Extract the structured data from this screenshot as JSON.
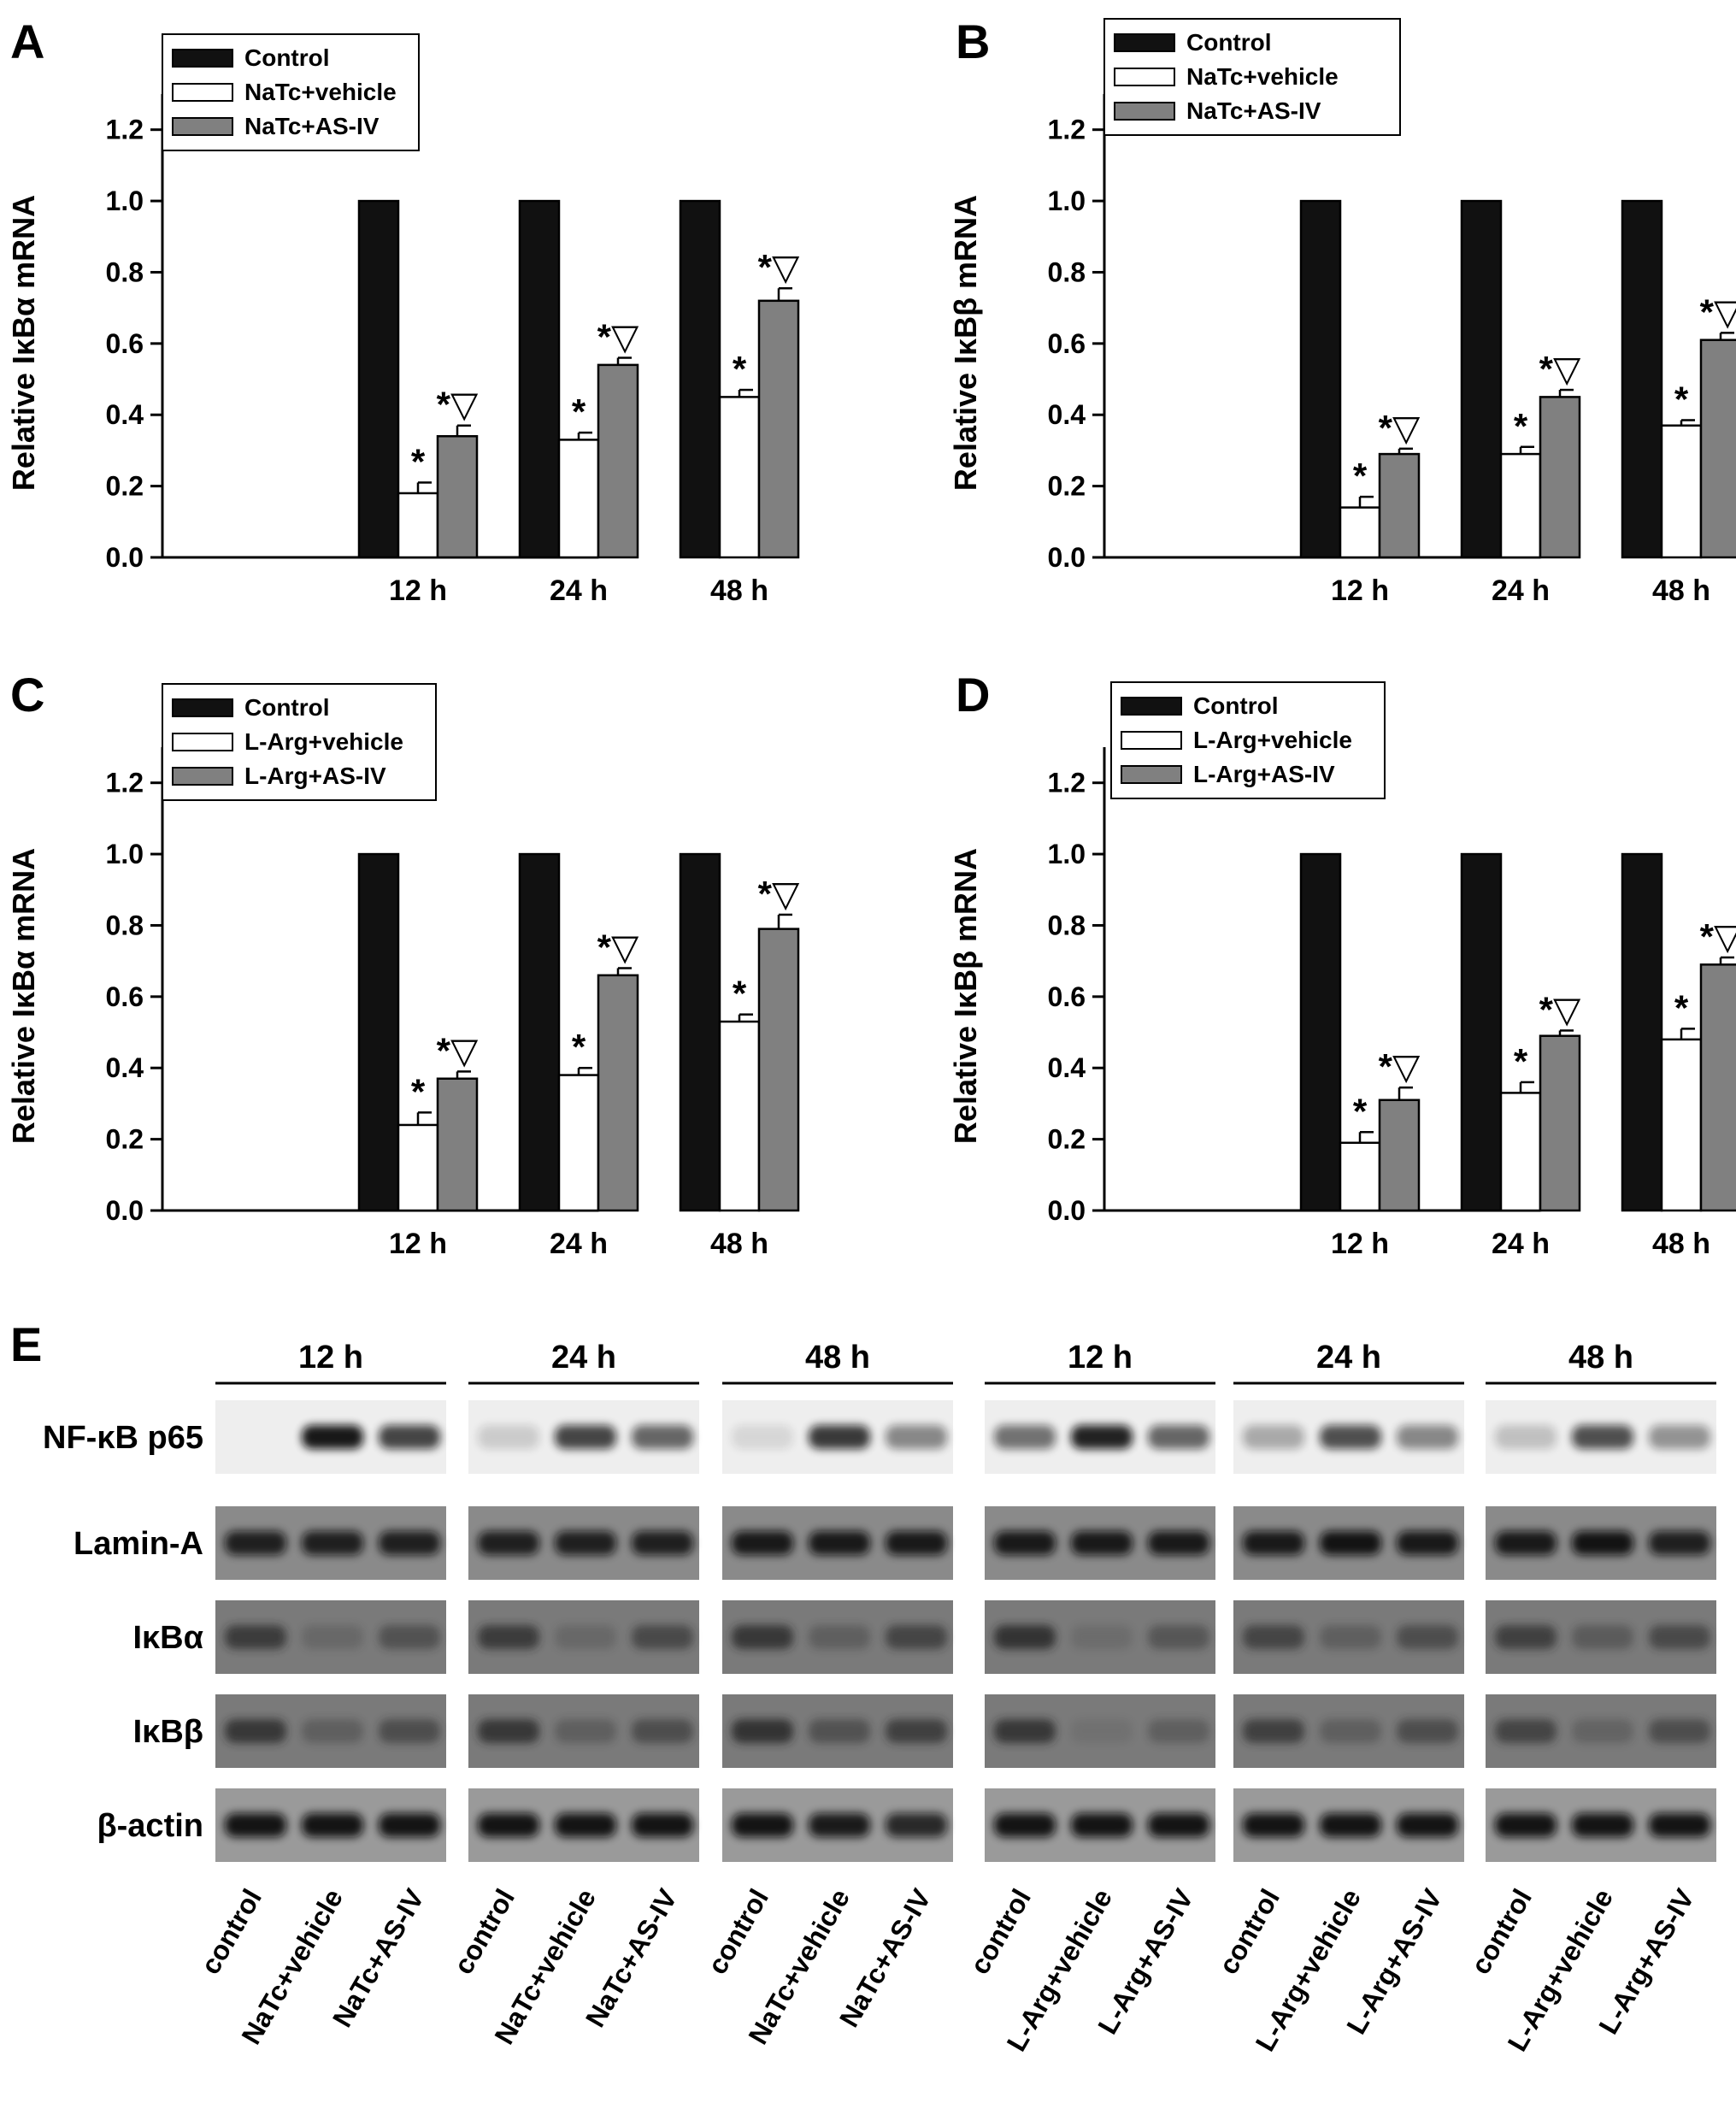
{
  "chart_data": [
    {
      "panel": "A",
      "type": "bar",
      "ylabel": "Relative IκBα mRNA",
      "xlabel": "",
      "categories": [
        "12 h",
        "24 h",
        "48 h"
      ],
      "ylim": [
        0,
        1.3
      ],
      "yticks": [
        "0.0",
        "0.2",
        "0.4",
        "0.6",
        "0.8",
        "1.0",
        "1.2"
      ],
      "legend_position": "top-left",
      "series": [
        {
          "name": "Control",
          "color": "#111111",
          "values": [
            1.0,
            1.0,
            1.0
          ],
          "errors": [
            0,
            0,
            0
          ]
        },
        {
          "name": "NaTc+vehicle",
          "color": "#ffffff",
          "values": [
            0.18,
            0.33,
            0.45
          ],
          "errors": [
            0.03,
            0.02,
            0.02
          ]
        },
        {
          "name": "NaTc+AS-IV",
          "color": "#808080",
          "values": [
            0.34,
            0.54,
            0.72
          ],
          "errors": [
            0.03,
            0.02,
            0.035
          ]
        }
      ],
      "annotations": [
        [
          "",
          "*",
          "*▽"
        ],
        [
          "",
          "*",
          "*▽"
        ],
        [
          "",
          "*",
          "*▽"
        ]
      ]
    },
    {
      "panel": "B",
      "type": "bar",
      "ylabel": "Relative IκBβ mRNA",
      "xlabel": "",
      "categories": [
        "12 h",
        "24 h",
        "48 h"
      ],
      "ylim": [
        0,
        1.3
      ],
      "yticks": [
        "0.0",
        "0.2",
        "0.4",
        "0.6",
        "0.8",
        "1.0",
        "1.2"
      ],
      "legend_position": "top-left",
      "series": [
        {
          "name": "Control",
          "color": "#111111",
          "values": [
            1.0,
            1.0,
            1.0
          ],
          "errors": [
            0,
            0,
            0
          ]
        },
        {
          "name": "NaTc+vehicle",
          "color": "#ffffff",
          "values": [
            0.14,
            0.29,
            0.37
          ],
          "errors": [
            0.03,
            0.02,
            0.015
          ]
        },
        {
          "name": "NaTc+AS-IV",
          "color": "#808080",
          "values": [
            0.29,
            0.45,
            0.61
          ],
          "errors": [
            0.015,
            0.02,
            0.02
          ]
        }
      ],
      "annotations": [
        [
          "",
          "*",
          "*▽"
        ],
        [
          "",
          "*",
          "*▽"
        ],
        [
          "",
          "*",
          "*▽"
        ]
      ]
    },
    {
      "panel": "C",
      "type": "bar",
      "ylabel": "Relative IκBα mRNA",
      "xlabel": "",
      "categories": [
        "12 h",
        "24 h",
        "48 h"
      ],
      "ylim": [
        0,
        1.3
      ],
      "yticks": [
        "0.0",
        "0.2",
        "0.4",
        "0.6",
        "0.8",
        "1.0",
        "1.2"
      ],
      "legend_position": "top-left",
      "series": [
        {
          "name": "Control",
          "color": "#111111",
          "values": [
            1.0,
            1.0,
            1.0
          ],
          "errors": [
            0,
            0,
            0
          ]
        },
        {
          "name": "L-Arg+vehicle",
          "color": "#ffffff",
          "values": [
            0.24,
            0.38,
            0.53
          ],
          "errors": [
            0.035,
            0.02,
            0.02
          ]
        },
        {
          "name": "L-Arg+AS-IV",
          "color": "#808080",
          "values": [
            0.37,
            0.66,
            0.79
          ],
          "errors": [
            0.02,
            0.02,
            0.04
          ]
        }
      ],
      "annotations": [
        [
          "",
          "*",
          "*▽"
        ],
        [
          "",
          "*",
          "*▽"
        ],
        [
          "",
          "*",
          "*▽"
        ]
      ]
    },
    {
      "panel": "D",
      "type": "bar",
      "ylabel": "Relative IκBβ mRNA",
      "xlabel": "",
      "categories": [
        "12 h",
        "24 h",
        "48 h"
      ],
      "ylim": [
        0,
        1.3
      ],
      "yticks": [
        "0.0",
        "0.2",
        "0.4",
        "0.6",
        "0.8",
        "1.0",
        "1.2"
      ],
      "legend_position": "top-left",
      "series": [
        {
          "name": "Control",
          "color": "#111111",
          "values": [
            1.0,
            1.0,
            1.0
          ],
          "errors": [
            0,
            0,
            0
          ]
        },
        {
          "name": "L-Arg+vehicle",
          "color": "#ffffff",
          "values": [
            0.19,
            0.33,
            0.48
          ],
          "errors": [
            0.03,
            0.03,
            0.03
          ]
        },
        {
          "name": "L-Arg+AS-IV",
          "color": "#808080",
          "values": [
            0.31,
            0.49,
            0.69
          ],
          "errors": [
            0.035,
            0.015,
            0.02
          ]
        }
      ],
      "annotations": [
        [
          "",
          "*",
          "*▽"
        ],
        [
          "",
          "*",
          "*▽"
        ],
        [
          "",
          "*",
          "*▽"
        ]
      ]
    }
  ],
  "blot": {
    "panel": "E",
    "timepoints": [
      "12 h",
      "24 h",
      "48 h",
      "12 h",
      "24 h",
      "48 h"
    ],
    "rows": [
      {
        "label": "NF-κB p65",
        "bg": "#eeeeee",
        "band_dark": "#111111",
        "intensities": [
          [
            0.0,
            0.95,
            0.75
          ],
          [
            0.15,
            0.75,
            0.6
          ],
          [
            0.1,
            0.8,
            0.45
          ],
          [
            0.55,
            0.9,
            0.6
          ],
          [
            0.3,
            0.7,
            0.45
          ],
          [
            0.2,
            0.7,
            0.4
          ]
        ]
      },
      {
        "label": "Lamin-A",
        "bg": "#8a8a8a",
        "band_dark": "#111111",
        "intensities": [
          [
            0.85,
            0.85,
            0.85
          ],
          [
            0.85,
            0.85,
            0.85
          ],
          [
            0.9,
            0.9,
            0.9
          ],
          [
            0.9,
            0.9,
            0.9
          ],
          [
            0.9,
            0.95,
            0.9
          ],
          [
            0.9,
            0.95,
            0.85
          ]
        ]
      },
      {
        "label": "IκBα",
        "bg": "#7a7a7a",
        "band_dark": "#222222",
        "intensities": [
          [
            0.7,
            0.2,
            0.45
          ],
          [
            0.7,
            0.2,
            0.55
          ],
          [
            0.75,
            0.3,
            0.6
          ],
          [
            0.8,
            0.15,
            0.4
          ],
          [
            0.6,
            0.3,
            0.5
          ],
          [
            0.65,
            0.35,
            0.55
          ]
        ]
      },
      {
        "label": "IκBβ",
        "bg": "#7a7a7a",
        "band_dark": "#222222",
        "intensities": [
          [
            0.75,
            0.3,
            0.5
          ],
          [
            0.75,
            0.3,
            0.5
          ],
          [
            0.8,
            0.45,
            0.65
          ],
          [
            0.75,
            0.1,
            0.3
          ],
          [
            0.65,
            0.3,
            0.5
          ],
          [
            0.6,
            0.25,
            0.5
          ]
        ]
      },
      {
        "label": "β-actin",
        "bg": "#9a9a9a",
        "band_dark": "#0a0a0a",
        "intensities": [
          [
            0.95,
            0.95,
            0.95
          ],
          [
            0.95,
            0.95,
            0.95
          ],
          [
            0.95,
            0.9,
            0.8
          ],
          [
            0.95,
            0.95,
            0.95
          ],
          [
            0.95,
            0.95,
            0.95
          ],
          [
            0.95,
            0.95,
            0.95
          ]
        ]
      }
    ],
    "lane_labels": [
      [
        "control",
        "NaTc+vehicle",
        "NaTc+AS-IV"
      ],
      [
        "control",
        "NaTc+vehicle",
        "NaTc+AS-IV"
      ],
      [
        "control",
        "NaTc+vehicle",
        "NaTc+AS-IV"
      ],
      [
        "control",
        "L-Arg+vehicle",
        "L-Arg+AS-IV"
      ],
      [
        "control",
        "L-Arg+vehicle",
        "L-Arg+AS-IV"
      ],
      [
        "control",
        "L-Arg+vehicle",
        "L-Arg+AS-IV"
      ]
    ]
  }
}
